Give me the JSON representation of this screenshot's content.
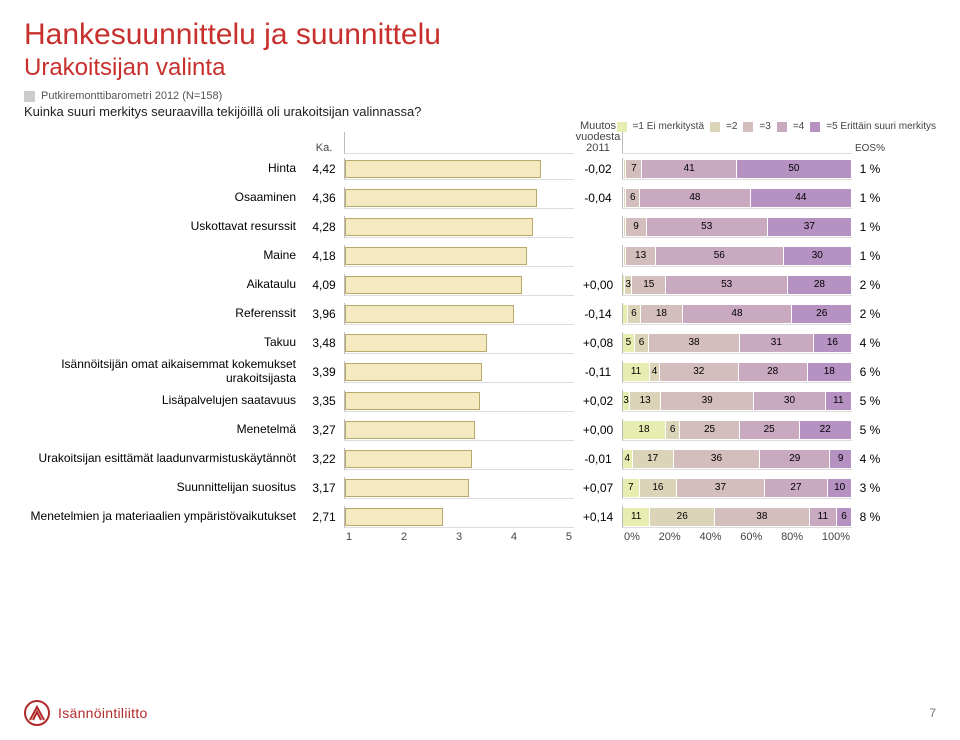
{
  "page": {
    "title": "Hankesuunnittelu ja suunnittelu",
    "subtitle": "Urakoitsijan valinta",
    "title_color": "#c7302c",
    "subtitle_color": "#c7302c",
    "page_number": "7",
    "background": "#ffffff"
  },
  "source": {
    "swatch_color": "#cccccc",
    "text": "Putkiremonttibarometri 2012 (N=158)"
  },
  "question": "Kuinka suuri merkitys seuraavilla tekijöillä oli urakoitsijan valinnassa?",
  "columns": {
    "ka_header": "Ka.",
    "muutos_header": "Muutos vuodesta 2011",
    "eos_header": "EOS%"
  },
  "legend": {
    "items": [
      {
        "label": "=1 Ei merkitystä",
        "color": "#e7edb0"
      },
      {
        "label": "=2",
        "color": "#dcd4b8"
      },
      {
        "label": "=3",
        "color": "#d4bdbd"
      },
      {
        "label": "=4",
        "color": "#c8a9c0"
      },
      {
        "label": "=5 Erittäin suuri merkitys",
        "color": "#b592c1"
      }
    ]
  },
  "bar1": {
    "fill_color": "#f5e9bf",
    "border_color": "#b8a86e",
    "max": 5.0,
    "min": 1.0,
    "ticks": [
      "1",
      "2",
      "3",
      "4",
      "5"
    ]
  },
  "bar2": {
    "ticks": [
      "0%",
      "20%",
      "40%",
      "60%",
      "80%",
      "100%"
    ]
  },
  "rows": [
    {
      "label": "Hinta",
      "ka": "4,42",
      "muutos": "-0,02",
      "eos": "1 %",
      "val": 4.42,
      "seg": [
        {
          "v": 1,
          "t": ""
        },
        {
          "v": 7,
          "t": "7"
        },
        {
          "v": 41,
          "t": "41"
        },
        {
          "v": 50,
          "t": "50"
        }
      ]
    },
    {
      "label": "Osaaminen",
      "ka": "4,36",
      "muutos": "-0,04",
      "eos": "1 %",
      "val": 4.36,
      "seg": [
        {
          "v": 1,
          "t": ""
        },
        {
          "v": 6,
          "t": "6"
        },
        {
          "v": 48,
          "t": "48"
        },
        {
          "v": 44,
          "t": "44"
        }
      ]
    },
    {
      "label": "Uskottavat resurssit",
      "ka": "4,28",
      "muutos": "",
      "eos": "1 %",
      "val": 4.28,
      "seg": [
        {
          "v": 1,
          "t": ""
        },
        {
          "v": 9,
          "t": "9"
        },
        {
          "v": 53,
          "t": "53"
        },
        {
          "v": 37,
          "t": "37"
        }
      ]
    },
    {
      "label": "Maine",
      "ka": "4,18",
      "muutos": "",
      "eos": "1 %",
      "val": 4.18,
      "seg": [
        {
          "v": 1,
          "t": ""
        },
        {
          "v": 13,
          "t": "13"
        },
        {
          "v": 56,
          "t": "56"
        },
        {
          "v": 30,
          "t": "30"
        }
      ]
    },
    {
      "label": "Aikataulu",
      "ka": "4,09",
      "muutos": "+0,00",
      "eos": "2 %",
      "val": 4.09,
      "seg": [
        {
          "v": 1,
          "t": ""
        },
        {
          "v": 3,
          "t": "3"
        },
        {
          "v": 15,
          "t": "15"
        },
        {
          "v": 53,
          "t": "53"
        },
        {
          "v": 28,
          "t": "28"
        }
      ]
    },
    {
      "label": "Referenssit",
      "ka": "3,96",
      "muutos": "-0,14",
      "eos": "2 %",
      "val": 3.96,
      "seg": [
        {
          "v": 2,
          "t": ""
        },
        {
          "v": 6,
          "t": "6"
        },
        {
          "v": 18,
          "t": "18"
        },
        {
          "v": 48,
          "t": "48"
        },
        {
          "v": 26,
          "t": "26"
        }
      ]
    },
    {
      "label": "Takuu",
      "ka": "3,48",
      "muutos": "+0,08",
      "eos": "4 %",
      "val": 3.48,
      "seg": [
        {
          "v": 5,
          "t": "5"
        },
        {
          "v": 6,
          "t": "6"
        },
        {
          "v": 38,
          "t": "38"
        },
        {
          "v": 31,
          "t": "31"
        },
        {
          "v": 16,
          "t": "16"
        }
      ]
    },
    {
      "label": "Isännöitsijän omat aikaisemmat kokemukset urakoitsijasta",
      "ka": "3,39",
      "muutos": "-0,11",
      "eos": "6 %",
      "val": 3.39,
      "seg": [
        {
          "v": 11,
          "t": "11"
        },
        {
          "v": 4,
          "t": "4"
        },
        {
          "v": 32,
          "t": "32"
        },
        {
          "v": 28,
          "t": "28"
        },
        {
          "v": 18,
          "t": "18"
        }
      ]
    },
    {
      "label": "Lisäpalvelujen saatavuus",
      "ka": "3,35",
      "muutos": "+0,02",
      "eos": "5 %",
      "val": 3.35,
      "seg": [
        {
          "v": 3,
          "t": "3"
        },
        {
          "v": 13,
          "t": "13"
        },
        {
          "v": 39,
          "t": "39"
        },
        {
          "v": 30,
          "t": "30"
        },
        {
          "v": 11,
          "t": "11"
        }
      ]
    },
    {
      "label": "Menetelmä",
      "ka": "3,27",
      "muutos": "+0,00",
      "eos": "5 %",
      "val": 3.27,
      "seg": [
        {
          "v": 18,
          "t": "18"
        },
        {
          "v": 6,
          "t": "6"
        },
        {
          "v": 25,
          "t": "25"
        },
        {
          "v": 25,
          "t": "25"
        },
        {
          "v": 22,
          "t": "22"
        }
      ]
    },
    {
      "label": "Urakoitsijan esittämät laadunvarmistuskäytännöt",
      "ka": "3,22",
      "muutos": "-0,01",
      "eos": "4 %",
      "val": 3.22,
      "seg": [
        {
          "v": 4,
          "t": "4"
        },
        {
          "v": 17,
          "t": "17"
        },
        {
          "v": 36,
          "t": "36"
        },
        {
          "v": 29,
          "t": "29"
        },
        {
          "v": 9,
          "t": "9"
        }
      ]
    },
    {
      "label": "Suunnittelijan suositus",
      "ka": "3,17",
      "muutos": "+0,07",
      "eos": "3 %",
      "val": 3.17,
      "seg": [
        {
          "v": 7,
          "t": "7"
        },
        {
          "v": 16,
          "t": "16"
        },
        {
          "v": 37,
          "t": "37"
        },
        {
          "v": 27,
          "t": "27"
        },
        {
          "v": 10,
          "t": "10"
        }
      ]
    },
    {
      "label": "Menetelmien ja materiaalien ympäristövaikutukset",
      "ka": "2,71",
      "muutos": "+0,14",
      "eos": "8 %",
      "val": 2.71,
      "seg": [
        {
          "v": 11,
          "t": "11"
        },
        {
          "v": 26,
          "t": "26"
        },
        {
          "v": 38,
          "t": "38"
        },
        {
          "v": 11,
          "t": "11"
        },
        {
          "v": 6,
          "t": "6"
        }
      ]
    }
  ],
  "footer": {
    "org": "Isännöintiliitto",
    "logo_color": "#b02a2a"
  }
}
